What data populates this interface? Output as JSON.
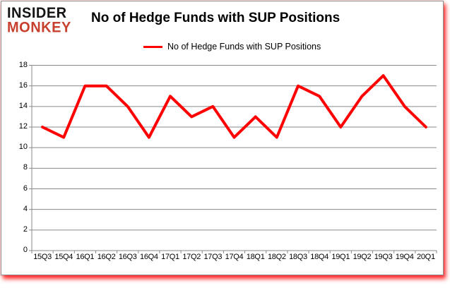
{
  "logo": {
    "line1": "INSIDER",
    "line2": "MONKEY",
    "line1_color": "#141414",
    "line2_color": "#c8402e"
  },
  "header": {
    "title": "No of Hedge Funds with SUP Positions"
  },
  "legend": {
    "label": "No of Hedge Funds with SUP Positions",
    "line_color": "#fe0000"
  },
  "chart_data": {
    "type": "line",
    "title": "No of Hedge Funds with SUP Positions",
    "series_name": "No of Hedge Funds with SUP Positions",
    "categories": [
      "15Q3",
      "15Q4",
      "16Q1",
      "16Q2",
      "16Q3",
      "16Q4",
      "17Q1",
      "17Q2",
      "17Q3",
      "17Q4",
      "18Q1",
      "18Q2",
      "18Q3",
      "18Q4",
      "19Q1",
      "19Q2",
      "19Q3",
      "19Q4",
      "20Q1"
    ],
    "values": [
      12,
      11,
      16,
      16,
      14,
      11,
      15,
      13,
      14,
      11,
      13,
      11,
      16,
      15,
      12,
      15,
      17,
      14,
      12
    ],
    "xlabel": "",
    "ylabel": "",
    "ylim": [
      0,
      18
    ],
    "ytick_step": 2,
    "grid": true,
    "legend_position": "top-center",
    "line_color": "#fe0000",
    "line_width": 4,
    "gridline_color": "#8a8a8a",
    "axis_color": "#8a8a8a"
  }
}
